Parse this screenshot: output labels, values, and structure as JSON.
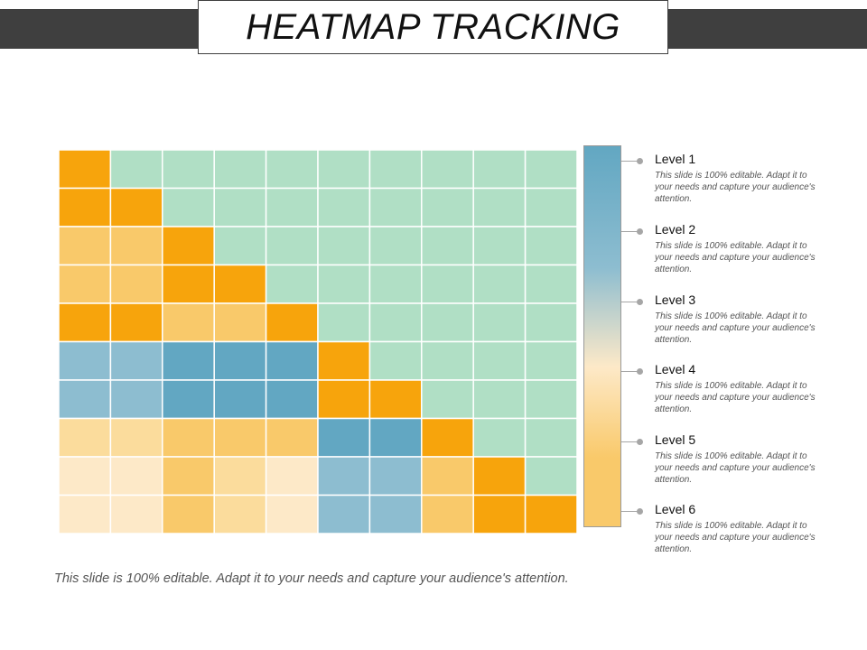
{
  "title": "HEATMAP TRACKING",
  "footer": "This slide is 100% editable. Adapt it to your needs and capture your audience's attention.",
  "colors": {
    "level_1": "#62a7c2",
    "level_2": "#8dbdd0",
    "level_3": "#f7a40c",
    "level_4": "#f9c96a",
    "level_5": "#fbdc9c",
    "level_6": "#fde9c8",
    "background": "#b0dfc5",
    "bar_dark": "#3f3f3f",
    "grid_line": "#ffffff"
  },
  "legend": [
    {
      "label": "Level 1",
      "desc": "This slide is 100% editable. Adapt it to your needs and capture your audience's attention."
    },
    {
      "label": "Level 2",
      "desc": "This slide is 100% editable. Adapt it to your needs and capture your audience's attention."
    },
    {
      "label": "Level 3",
      "desc": "This slide is 100% editable. Adapt it to your needs and capture your audience's attention."
    },
    {
      "label": "Level 4",
      "desc": "This slide is 100% editable. Adapt it to your needs and capture your audience's attention."
    },
    {
      "label": "Level 5",
      "desc": "This slide is 100% editable. Adapt it to your needs and capture your audience's attention."
    },
    {
      "label": "Level 6",
      "desc": "This slide is 100% editable. Adapt it to your needs and capture your audience's attention."
    }
  ],
  "chart_data": {
    "type": "heatmap",
    "rows": 10,
    "cols": 10,
    "color_key": {
      "0": "background",
      "1": "level_1",
      "2": "level_2",
      "3": "level_3",
      "4": "level_4",
      "5": "level_5",
      "6": "level_6"
    },
    "cells": [
      [
        3,
        0,
        0,
        0,
        0,
        0,
        0,
        0,
        0,
        0
      ],
      [
        3,
        3,
        0,
        0,
        0,
        0,
        0,
        0,
        0,
        0
      ],
      [
        4,
        4,
        3,
        0,
        0,
        0,
        0,
        0,
        0,
        0
      ],
      [
        4,
        4,
        3,
        3,
        0,
        0,
        0,
        0,
        0,
        0
      ],
      [
        3,
        3,
        4,
        4,
        3,
        0,
        0,
        0,
        0,
        0
      ],
      [
        2,
        2,
        1,
        1,
        1,
        3,
        0,
        0,
        0,
        0
      ],
      [
        2,
        2,
        1,
        1,
        1,
        3,
        3,
        0,
        0,
        0
      ],
      [
        5,
        5,
        4,
        4,
        4,
        1,
        1,
        3,
        0,
        0
      ],
      [
        6,
        6,
        4,
        5,
        6,
        2,
        2,
        4,
        3,
        0
      ],
      [
        6,
        6,
        4,
        5,
        6,
        2,
        2,
        4,
        3,
        3
      ]
    ],
    "colorbar_stops": [
      "level_1",
      "level_2",
      "level_6",
      "level_4"
    ]
  }
}
